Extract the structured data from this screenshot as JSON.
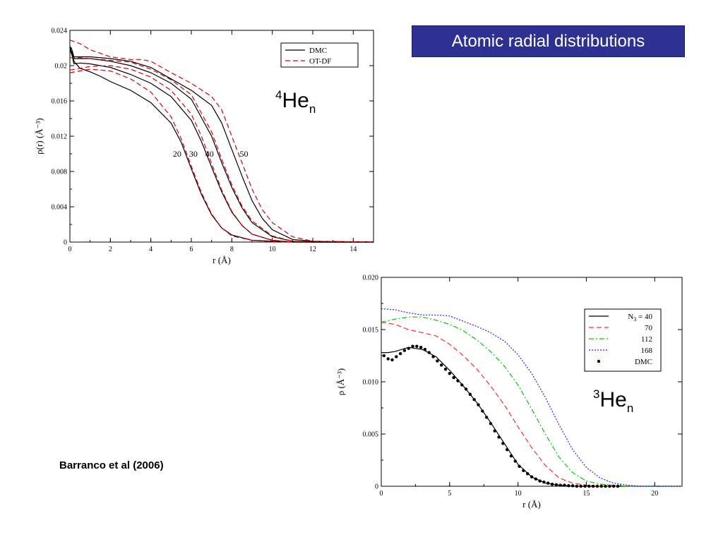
{
  "slide_title": "Atomic radial distributions",
  "credit": "Barranco et al (2006)",
  "chart_data": [
    {
      "type": "line",
      "name": "he4",
      "ylabel": "ρ(r) (Å⁻³)",
      "xlabel": "r (Å)",
      "xlim": [
        0,
        15
      ],
      "ylim": [
        0,
        0.024
      ],
      "xticks": [
        0,
        2,
        4,
        6,
        8,
        10,
        12,
        14
      ],
      "yticks": [
        0,
        0.004,
        0.008,
        0.012,
        0.016,
        0.02,
        0.024
      ],
      "ytick_labels": [
        "0",
        "0.004",
        "0.008",
        "0.012",
        "0.016",
        "0.02",
        "0.024"
      ],
      "legend_position": "top-right",
      "label": {
        "base": "He",
        "sup": "4",
        "sub": "n"
      },
      "legend": [
        {
          "key": "DMC",
          "label": "DMC",
          "color": "#000000",
          "dash": "solid"
        },
        {
          "key": "OTDF",
          "label": "OT-DF",
          "color": "#dd0000",
          "dash": "dashed"
        }
      ],
      "curve_labels": [
        {
          "text": "20",
          "x": 5.3,
          "y": 0.0097
        },
        {
          "text": "30",
          "x": 6.1,
          "y": 0.0097
        },
        {
          "text": "40",
          "x": 6.9,
          "y": 0.0097
        },
        {
          "text": "50",
          "x": 8.6,
          "y": 0.0097
        }
      ],
      "series": [
        {
          "name": "20",
          "kind": "DMC",
          "x": [
            0,
            0.1,
            0.2,
            0.5,
            1,
            1.5,
            2,
            3,
            4,
            5,
            5.5,
            6,
            6.5,
            7,
            7.5,
            8,
            9,
            10,
            11,
            12,
            15
          ],
          "y": [
            0.022,
            0.0215,
            0.0205,
            0.0197,
            0.0193,
            0.0188,
            0.0182,
            0.0172,
            0.0158,
            0.0135,
            0.0113,
            0.0083,
            0.0054,
            0.0031,
            0.0016,
            0.0008,
            0.0002,
            0.0001,
            0,
            0,
            0
          ]
        },
        {
          "name": "20",
          "kind": "OTDF",
          "x": [
            0,
            0.5,
            1,
            2,
            3,
            4,
            5,
            5.5,
            6,
            6.5,
            7,
            7.5,
            8,
            9,
            10,
            11,
            15
          ],
          "y": [
            0.0192,
            0.0194,
            0.0196,
            0.0194,
            0.0185,
            0.017,
            0.0142,
            0.0117,
            0.0086,
            0.0056,
            0.0032,
            0.0016,
            0.0007,
            0.0002,
            0,
            0,
            0
          ]
        },
        {
          "name": "30",
          "kind": "DMC",
          "x": [
            0,
            0.1,
            0.2,
            0.5,
            1,
            2,
            3,
            4,
            5,
            6,
            6.5,
            7,
            7.5,
            8,
            8.5,
            9,
            10,
            11,
            12,
            15
          ],
          "y": [
            0.0218,
            0.0212,
            0.0202,
            0.0203,
            0.0202,
            0.0198,
            0.019,
            0.018,
            0.0165,
            0.0138,
            0.0114,
            0.0085,
            0.0057,
            0.0034,
            0.0019,
            0.0009,
            0.0002,
            0,
            0,
            0
          ]
        },
        {
          "name": "30",
          "kind": "OTDF",
          "x": [
            0,
            0.5,
            1,
            2,
            3,
            4,
            5,
            6,
            6.5,
            7,
            7.5,
            8,
            8.5,
            9,
            10,
            11,
            15
          ],
          "y": [
            0.0195,
            0.0197,
            0.0199,
            0.02,
            0.0196,
            0.0187,
            0.0172,
            0.0145,
            0.012,
            0.0089,
            0.0059,
            0.0035,
            0.0019,
            0.0009,
            0.0002,
            0,
            0
          ]
        },
        {
          "name": "40",
          "kind": "DMC",
          "x": [
            0,
            0.1,
            0.2,
            0.5,
            1,
            2,
            3,
            4,
            5,
            6,
            7,
            7.5,
            8,
            8.5,
            9,
            10,
            11,
            12,
            15
          ],
          "y": [
            0.022,
            0.0214,
            0.0208,
            0.0208,
            0.0208,
            0.0205,
            0.02,
            0.0192,
            0.018,
            0.0162,
            0.012,
            0.009,
            0.0062,
            0.0039,
            0.0022,
            0.0006,
            0.0001,
            0,
            0
          ]
        },
        {
          "name": "40",
          "kind": "OTDF",
          "x": [
            0,
            0.5,
            1,
            2,
            3,
            4,
            5,
            6,
            7,
            7.5,
            8,
            8.5,
            9,
            10,
            11,
            15
          ],
          "y": [
            0.0209,
            0.0209,
            0.0208,
            0.0206,
            0.0204,
            0.0196,
            0.0184,
            0.0167,
            0.0125,
            0.0094,
            0.0065,
            0.0041,
            0.0024,
            0.0007,
            0.0001,
            0
          ]
        },
        {
          "name": "50",
          "kind": "DMC",
          "x": [
            0,
            0.1,
            0.2,
            0.5,
            1,
            2,
            3,
            4,
            5,
            6,
            7,
            7.5,
            8,
            8.5,
            9,
            9.5,
            10,
            11,
            12,
            15
          ],
          "y": [
            0.0222,
            0.0218,
            0.021,
            0.021,
            0.021,
            0.0208,
            0.0205,
            0.0198,
            0.0185,
            0.0172,
            0.0155,
            0.0135,
            0.0105,
            0.0075,
            0.0047,
            0.0027,
            0.0014,
            0.0003,
            0.0001,
            0
          ]
        },
        {
          "name": "50",
          "kind": "OTDF",
          "x": [
            0,
            0.5,
            1,
            2,
            3,
            3.5,
            4,
            5,
            6,
            7,
            7.5,
            8,
            8.5,
            9,
            9.5,
            10,
            11,
            12,
            15
          ],
          "y": [
            0.0229,
            0.0225,
            0.0218,
            0.021,
            0.0207,
            0.0207,
            0.0205,
            0.0192,
            0.018,
            0.0165,
            0.015,
            0.012,
            0.009,
            0.006,
            0.0037,
            0.0022,
            0.0006,
            0.0001,
            0
          ]
        }
      ]
    },
    {
      "type": "line",
      "name": "he3",
      "ylabel": "ρ (Å⁻³)",
      "xlabel": "r (Å)",
      "xlim": [
        0,
        22
      ],
      "ylim": [
        0,
        0.02
      ],
      "xticks": [
        0,
        5,
        10,
        15,
        20
      ],
      "yticks": [
        0,
        0.005,
        0.01,
        0.015,
        0.02
      ],
      "ytick_labels": [
        "0",
        "0.005",
        "0.010",
        "0.015",
        "0.020"
      ],
      "legend_position": "top-right",
      "label": {
        "base": "He",
        "sup": "3",
        "sub": "n"
      },
      "legend": [
        {
          "label_html": "N₃ = 40",
          "label_base": "N",
          "label_sub": "3",
          "label_rest": " = 40",
          "color": "#000000",
          "dash": "solid"
        },
        {
          "label": "70",
          "color": "#ff2a2a",
          "dash": "dashed"
        },
        {
          "label": "112",
          "color": "#00c800",
          "dash": "dashdot"
        },
        {
          "label": "168",
          "color": "#2222ff",
          "dash": "dotted"
        },
        {
          "label": "DMC",
          "color": "#000000",
          "dash": "dots"
        }
      ],
      "series": [
        {
          "name": "N3 = 40",
          "kind": "line",
          "color": "#000000",
          "dash": "solid",
          "x": [
            0,
            0.5,
            1,
            2,
            3,
            4,
            5,
            6,
            7,
            8,
            9,
            10,
            11,
            12,
            13,
            14,
            15,
            17,
            22
          ],
          "y": [
            0.0128,
            0.0128,
            0.0129,
            0.0133,
            0.0131,
            0.0124,
            0.0111,
            0.0096,
            0.008,
            0.0061,
            0.0041,
            0.0021,
            0.0009,
            0.0003,
            0.0001,
            0,
            0,
            0,
            0
          ]
        },
        {
          "name": "70",
          "kind": "line",
          "color": "#ff2a2a",
          "dash": "dashed",
          "x": [
            0,
            1,
            2,
            3,
            4,
            5,
            6,
            7,
            8,
            9,
            10,
            11,
            12,
            13,
            14,
            15,
            16,
            17,
            22
          ],
          "y": [
            0.0157,
            0.0155,
            0.015,
            0.0147,
            0.0144,
            0.0136,
            0.0125,
            0.0112,
            0.0096,
            0.0078,
            0.0057,
            0.0037,
            0.002,
            0.0008,
            0.0003,
            0.0001,
            0,
            0,
            0
          ]
        },
        {
          "name": "112",
          "kind": "line",
          "color": "#00c800",
          "dash": "dashdot",
          "x": [
            0,
            1,
            2,
            3,
            4,
            5,
            6,
            7,
            8,
            9,
            10,
            11,
            12,
            13,
            14,
            15,
            16,
            17,
            18,
            22
          ],
          "y": [
            0.0157,
            0.016,
            0.0162,
            0.0162,
            0.0159,
            0.0155,
            0.0149,
            0.014,
            0.0129,
            0.0115,
            0.0097,
            0.0074,
            0.005,
            0.0028,
            0.0013,
            0.0005,
            0.0002,
            0.0001,
            0,
            0
          ]
        },
        {
          "name": "168",
          "kind": "line",
          "color": "#2222ff",
          "dash": "dotted",
          "x": [
            0,
            1,
            2,
            3,
            4,
            5,
            6,
            7,
            8,
            9,
            10,
            11,
            12,
            13,
            14,
            15,
            16,
            17,
            18,
            19,
            20,
            22
          ],
          "y": [
            0.017,
            0.0169,
            0.0166,
            0.0164,
            0.0164,
            0.0163,
            0.0158,
            0.0153,
            0.0147,
            0.0139,
            0.0126,
            0.0108,
            0.0085,
            0.0059,
            0.0035,
            0.0018,
            0.0008,
            0.0003,
            0.0001,
            0,
            0,
            0
          ]
        },
        {
          "name": "DMC",
          "kind": "points",
          "color": "#000000",
          "x": [
            0.2,
            0.5,
            0.8,
            1.1,
            1.4,
            1.7,
            2.0,
            2.3,
            2.6,
            2.9,
            3.2,
            3.5,
            3.8,
            4.1,
            4.4,
            4.7,
            5.0,
            5.3,
            5.6,
            5.9,
            6.2,
            6.5,
            6.8,
            7.1,
            7.4,
            7.7,
            8.0,
            8.3,
            8.6,
            8.9,
            9.2,
            9.5,
            9.8,
            10.1,
            10.4,
            10.7,
            11.0,
            11.3,
            11.6,
            11.9,
            12.2,
            12.5,
            12.8,
            13.1,
            13.4,
            13.7,
            14.0,
            14.3,
            14.6,
            14.9,
            15.2,
            15.5,
            15.8,
            16.1,
            16.4,
            16.7,
            17.0,
            17.3
          ],
          "y": [
            0.0125,
            0.0122,
            0.0121,
            0.0124,
            0.0127,
            0.013,
            0.0132,
            0.0134,
            0.0134,
            0.0133,
            0.0131,
            0.0128,
            0.0124,
            0.012,
            0.0116,
            0.0112,
            0.0108,
            0.0104,
            0.0101,
            0.0097,
            0.0093,
            0.0088,
            0.0083,
            0.0078,
            0.0072,
            0.0066,
            0.006,
            0.0053,
            0.0047,
            0.0041,
            0.0035,
            0.0029,
            0.0024,
            0.0019,
            0.0015,
            0.0012,
            0.0009,
            0.0007,
            0.0005,
            0.0004,
            0.0003,
            0.0002,
            0.00015,
            0.0001,
            0.0001,
            5e-05,
            5e-05,
            0,
            0,
            0,
            0,
            0,
            0,
            0,
            0,
            0,
            0,
            0
          ]
        }
      ]
    }
  ]
}
